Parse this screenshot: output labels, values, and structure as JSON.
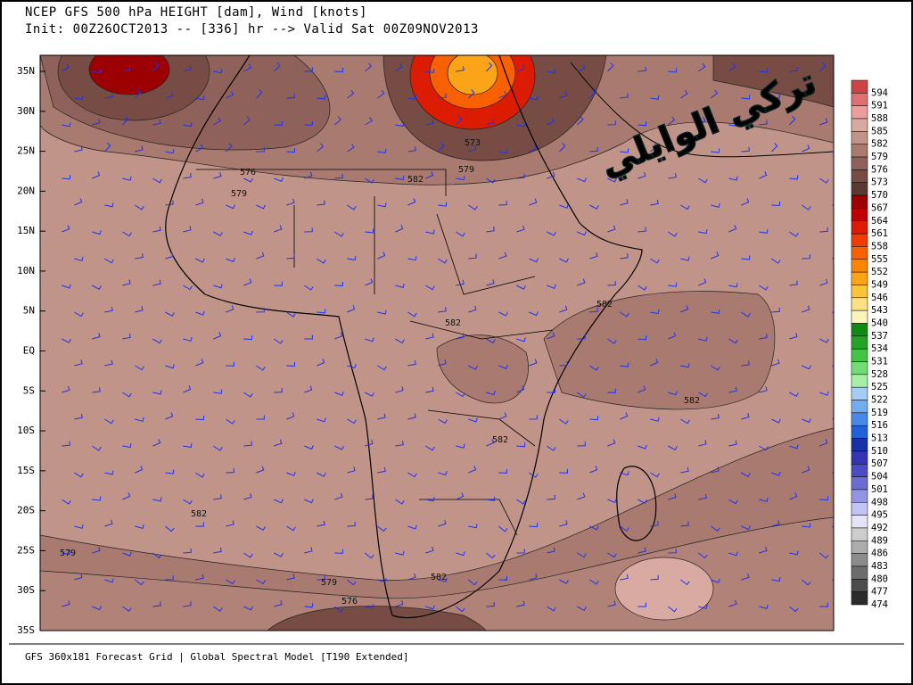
{
  "header": {
    "line1": "NCEP GFS 500 hPa HEIGHT [dam], Wind [knots]",
    "line2": "Init: 00Z26OCT2013 -- [336] hr --> Valid Sat 00Z09NOV2013"
  },
  "lat_labels": [
    "35N",
    "30N",
    "25N",
    "20N",
    "15N",
    "10N",
    "5N",
    "EQ",
    "5S",
    "10S",
    "15S",
    "20S",
    "25S",
    "30S",
    "35S"
  ],
  "colorbar": [
    {
      "label": "594",
      "color": "#cc4444"
    },
    {
      "label": "591",
      "color": "#dd7070"
    },
    {
      "label": "588",
      "color": "#ee9c9c"
    },
    {
      "label": "585",
      "color": "#d8aaa2"
    },
    {
      "label": "582",
      "color": "#c09488"
    },
    {
      "label": "579",
      "color": "#a87a70"
    },
    {
      "label": "576",
      "color": "#8e625a"
    },
    {
      "label": "573",
      "color": "#764c44"
    },
    {
      "label": "570",
      "color": "#5c3a32"
    },
    {
      "label": "567",
      "color": "#9c0000"
    },
    {
      "label": "564",
      "color": "#c00000"
    },
    {
      "label": "561",
      "color": "#dc1c00"
    },
    {
      "label": "558",
      "color": "#f03c00"
    },
    {
      "label": "555",
      "color": "#f86000"
    },
    {
      "label": "552",
      "color": "#fc8400"
    },
    {
      "label": "549",
      "color": "#fca418"
    },
    {
      "label": "546",
      "color": "#fcc438"
    },
    {
      "label": "543",
      "color": "#fce084"
    },
    {
      "label": "540",
      "color": "#fcf4b8"
    },
    {
      "label": "537",
      "color": "#108a10"
    },
    {
      "label": "534",
      "color": "#24a424"
    },
    {
      "label": "531",
      "color": "#44c444"
    },
    {
      "label": "528",
      "color": "#74dc74"
    },
    {
      "label": "525",
      "color": "#a4f0a4"
    },
    {
      "label": "522",
      "color": "#a4ccf4"
    },
    {
      "label": "519",
      "color": "#74acf0"
    },
    {
      "label": "516",
      "color": "#4888e8"
    },
    {
      "label": "513",
      "color": "#2060d8"
    },
    {
      "label": "510",
      "color": "#1830a8"
    },
    {
      "label": "507",
      "color": "#3434b4"
    },
    {
      "label": "504",
      "color": "#4c4cc4"
    },
    {
      "label": "501",
      "color": "#6c6cd4"
    },
    {
      "label": "498",
      "color": "#9494e4"
    },
    {
      "label": "495",
      "color": "#c4c4f4"
    },
    {
      "label": "492",
      "color": "#e4e4f4"
    },
    {
      "label": "489",
      "color": "#cccccc"
    },
    {
      "label": "486",
      "color": "#acacac"
    },
    {
      "label": "483",
      "color": "#8c8c8c"
    },
    {
      "label": "480",
      "color": "#6c6c6c"
    },
    {
      "label": "477",
      "color": "#4c4c4c"
    },
    {
      "label": "474",
      "color": "#2c2c2c"
    }
  ],
  "contour_labels": [
    "573",
    "579",
    "576",
    "579",
    "582",
    "582",
    "582",
    "582",
    "582",
    "582",
    "579",
    "582",
    "579",
    "576"
  ],
  "watermark": "تركي الوايلي",
  "footer": "GFS 360x181 Forecast Grid | Global Spectral Model [T190 Extended]"
}
